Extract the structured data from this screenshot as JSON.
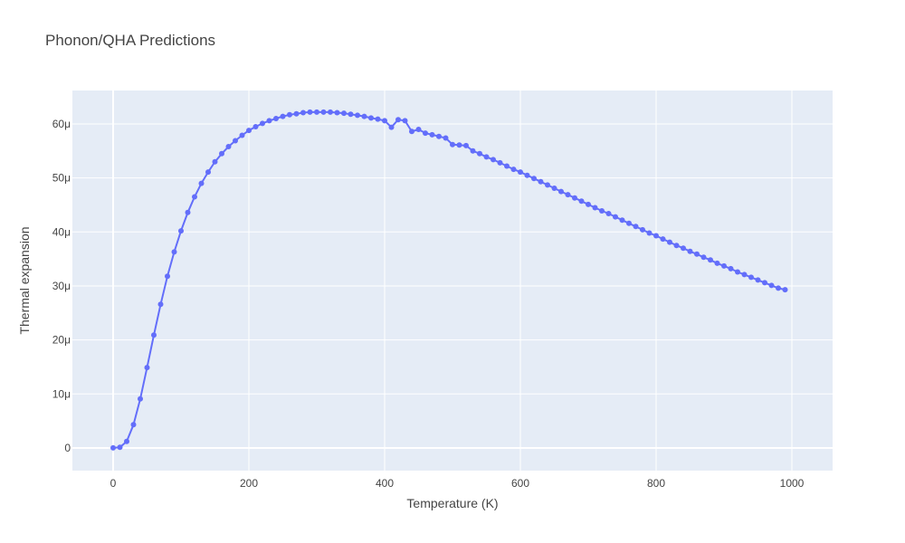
{
  "chart_data": {
    "type": "line",
    "title": "Phonon/QHA Predictions",
    "xlabel": "Temperature (K)",
    "ylabel": "Thermal expansion",
    "xlim": [
      -60,
      1060
    ],
    "ylim": [
      -4.2,
      66.2
    ],
    "x_ticks": [
      0,
      200,
      400,
      600,
      800,
      1000
    ],
    "x_tick_labels": [
      "0",
      "200",
      "400",
      "600",
      "800",
      "1000"
    ],
    "y_ticks": [
      0,
      10,
      20,
      30,
      40,
      50,
      60
    ],
    "y_tick_labels": [
      "0",
      "10μ",
      "20μ",
      "30μ",
      "40μ",
      "50μ",
      "60μ"
    ],
    "grid": true,
    "legend": "none",
    "series": [
      {
        "color": "#636efa",
        "mode": "lines+markers",
        "x": [
          0,
          10,
          20,
          30,
          40,
          50,
          60,
          70,
          80,
          90,
          100,
          110,
          120,
          130,
          140,
          150,
          160,
          170,
          180,
          190,
          200,
          210,
          220,
          230,
          240,
          250,
          260,
          270,
          280,
          290,
          300,
          310,
          320,
          330,
          340,
          350,
          360,
          370,
          380,
          390,
          400,
          410,
          420,
          430,
          440,
          450,
          460,
          470,
          480,
          490,
          500,
          510,
          520,
          530,
          540,
          550,
          560,
          570,
          580,
          590,
          600,
          610,
          620,
          630,
          640,
          650,
          660,
          670,
          680,
          690,
          700,
          710,
          720,
          730,
          740,
          750,
          760,
          770,
          780,
          790,
          800,
          810,
          820,
          830,
          840,
          850,
          860,
          870,
          880,
          890,
          900,
          910,
          920,
          930,
          940,
          950,
          960,
          970,
          980,
          990
        ],
        "y": [
          0.0,
          0.1,
          1.2,
          4.3,
          9.1,
          14.9,
          20.9,
          26.6,
          31.8,
          36.3,
          40.2,
          43.6,
          46.5,
          49.0,
          51.1,
          53.0,
          54.5,
          55.8,
          56.9,
          57.9,
          58.8,
          59.5,
          60.1,
          60.6,
          61.0,
          61.4,
          61.7,
          61.9,
          62.1,
          62.2,
          62.2,
          62.2,
          62.2,
          62.1,
          62.0,
          61.8,
          61.6,
          61.4,
          61.1,
          60.9,
          60.6,
          59.4,
          60.8,
          60.6,
          58.6,
          59.0,
          58.3,
          58.0,
          57.7,
          57.4,
          56.2,
          56.1,
          56.0,
          55.0,
          54.5,
          53.9,
          53.4,
          52.8,
          52.2,
          51.6,
          51.1,
          50.5,
          49.9,
          49.3,
          48.7,
          48.1,
          47.5,
          46.9,
          46.3,
          45.7,
          45.1,
          44.5,
          43.9,
          43.4,
          42.8,
          42.2,
          41.6,
          41.0,
          40.4,
          39.8,
          39.3,
          38.7,
          38.1,
          37.5,
          37.0,
          36.4,
          35.9,
          35.3,
          34.8,
          34.2,
          33.7,
          33.2,
          32.6,
          32.1,
          31.6,
          31.1,
          30.6,
          30.1,
          29.6,
          29.3
        ]
      }
    ]
  }
}
